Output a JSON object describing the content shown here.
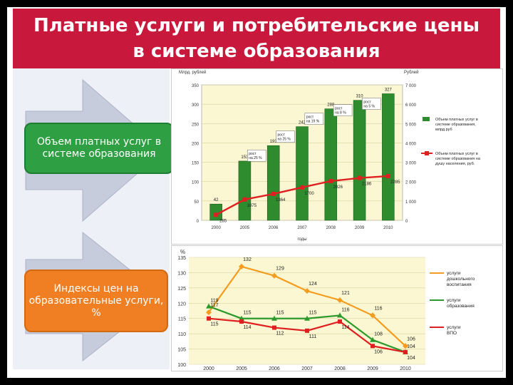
{
  "slide": {
    "title": "Платные услуги и потребительские цены\nв системе образования",
    "box_top": "Объем платных услуг в системе образования",
    "box_bottom": "Индексы цен на образовательные услуги, %"
  },
  "chart_data": [
    {
      "type": "bar",
      "title": "",
      "ylabel_left": "Млрд. рублей",
      "ylabel_right": "Рублей",
      "xlabel": "годы",
      "categories": [
        "2000",
        "2005",
        "2006",
        "2007",
        "2008",
        "2009",
        "2010"
      ],
      "ylim_left": [
        0,
        350
      ],
      "ylim_right": [
        0,
        7000
      ],
      "left_ticks": [
        "0",
        "50",
        "100",
        "150",
        "200",
        "250",
        "300",
        "350"
      ],
      "right_ticks": [
        "0",
        "1 000",
        "2 000",
        "3 000",
        "4 000",
        "5 000",
        "6 000",
        "7 000"
      ],
      "series": [
        {
          "name": "Объем платных услуг в системе образования, млрд.руб",
          "type": "bar",
          "axis": "left",
          "color": "#2e8b2e",
          "values": [
            42,
            153,
            193,
            242,
            288,
            310,
            327
          ]
        },
        {
          "name": "Объем платных услуг в системе образования на душу населения, руб.",
          "type": "line",
          "axis": "right",
          "color": "#e02020",
          "values": [
            285,
            1075,
            1364,
            1700,
            2026,
            2186,
            2285
          ]
        }
      ],
      "annotations": [
        "рост на 25 %",
        "рост на 25 %",
        "рост на 19 %",
        "рост на 8 %",
        "рост на 5 %"
      ],
      "legend": "right"
    },
    {
      "type": "line",
      "title": "",
      "ylabel": "%",
      "categories": [
        "2000",
        "2005",
        "2006",
        "2007",
        "2008",
        "2009",
        "2010"
      ],
      "ylim": [
        100,
        135
      ],
      "y_ticks": [
        "100",
        "105",
        "110",
        "115",
        "120",
        "125",
        "130",
        "135"
      ],
      "series": [
        {
          "name": "услуги дошкольного воспитания",
          "color": "#f39c1f",
          "values": [
            117,
            132,
            129,
            124,
            121,
            116,
            106
          ]
        },
        {
          "name": "услуги образования",
          "color": "#2e9a2e",
          "values": [
            119,
            115,
            115,
            115,
            116,
            108,
            104
          ]
        },
        {
          "name": "услуги ВПО",
          "color": "#e02020",
          "values": [
            115,
            114,
            112,
            111,
            114,
            106,
            104
          ]
        }
      ],
      "value_labels": {
        "orange": [
          "117",
          "132",
          "129",
          "124",
          "121",
          "116",
          "106"
        ],
        "green": [
          "119",
          "115",
          "115",
          "115",
          "116",
          "108",
          "104"
        ],
        "red": [
          "115",
          "114",
          "112",
          "111",
          "114",
          "106",
          "104"
        ]
      },
      "legend": "right"
    }
  ]
}
